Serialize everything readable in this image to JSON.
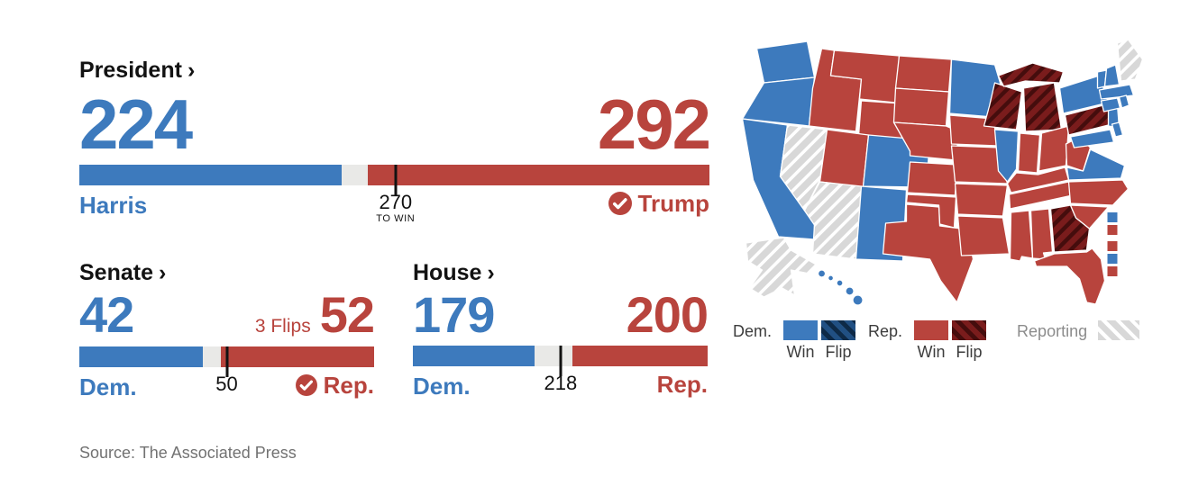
{
  "ui": {
    "chevron": "›"
  },
  "president": {
    "title": "President",
    "dem": {
      "name": "Harris",
      "votes": 224
    },
    "rep": {
      "name": "Trump",
      "votes": 292,
      "winner": true
    },
    "total": 538,
    "threshold": 270,
    "threshold_label": "270",
    "threshold_sublabel": "TO WIN"
  },
  "senate": {
    "title": "Senate",
    "dem": {
      "name": "Dem.",
      "votes": 42
    },
    "rep": {
      "name": "Rep.",
      "votes": 52,
      "winner": true,
      "flips_label": "3 Flips"
    },
    "total": 100,
    "threshold": 50,
    "threshold_label": "50"
  },
  "house": {
    "title": "House",
    "dem": {
      "name": "Dem.",
      "votes": 179
    },
    "rep": {
      "name": "Rep.",
      "votes": 200,
      "winner": false
    },
    "total": 435,
    "threshold": 218,
    "threshold_label": "218"
  },
  "source": {
    "text": "Source: The Associated Press"
  },
  "colors": {
    "dem": "#3d7abd",
    "rep": "#b8443d",
    "undecided": "#e9e9e7",
    "rep_flip_base": "#7a1c1c",
    "rep_flip_stripe": "#450d0d",
    "dem_flip_base": "#215083",
    "dem_flip_stripe": "#0e2a47",
    "reporting_base": "#d8d8d8",
    "reporting_stripe": "#ffffff"
  },
  "map": {
    "legend": {
      "dem_label": "Dem.",
      "rep_label": "Rep.",
      "reporting_label": "Reporting",
      "win_label": "Win",
      "flip_label": "Flip"
    },
    "states": [
      {
        "id": "WA",
        "name": "Washington",
        "status": "dem-win"
      },
      {
        "id": "OR",
        "name": "Oregon",
        "status": "dem-win"
      },
      {
        "id": "CA",
        "name": "California",
        "status": "dem-win"
      },
      {
        "id": "NV",
        "name": "Nevada",
        "status": "reporting"
      },
      {
        "id": "ID",
        "name": "Idaho",
        "status": "rep-win"
      },
      {
        "id": "MT",
        "name": "Montana",
        "status": "rep-win"
      },
      {
        "id": "WY",
        "name": "Wyoming",
        "status": "rep-win"
      },
      {
        "id": "UT",
        "name": "Utah",
        "status": "rep-win"
      },
      {
        "id": "CO",
        "name": "Colorado",
        "status": "dem-win"
      },
      {
        "id": "AZ",
        "name": "Arizona",
        "status": "reporting"
      },
      {
        "id": "NM",
        "name": "New Mexico",
        "status": "dem-win"
      },
      {
        "id": "ND",
        "name": "North Dakota",
        "status": "rep-win"
      },
      {
        "id": "SD",
        "name": "South Dakota",
        "status": "rep-win"
      },
      {
        "id": "NE",
        "name": "Nebraska",
        "status": "rep-win"
      },
      {
        "id": "KS",
        "name": "Kansas",
        "status": "rep-win"
      },
      {
        "id": "OK",
        "name": "Oklahoma",
        "status": "rep-win"
      },
      {
        "id": "TX",
        "name": "Texas",
        "status": "rep-win"
      },
      {
        "id": "MN",
        "name": "Minnesota",
        "status": "dem-win"
      },
      {
        "id": "IA",
        "name": "Iowa",
        "status": "rep-win"
      },
      {
        "id": "MO",
        "name": "Missouri",
        "status": "rep-win"
      },
      {
        "id": "AR",
        "name": "Arkansas",
        "status": "rep-win"
      },
      {
        "id": "LA",
        "name": "Louisiana",
        "status": "rep-win"
      },
      {
        "id": "WI",
        "name": "Wisconsin",
        "status": "rep-flip"
      },
      {
        "id": "MI",
        "name": "Michigan",
        "status": "rep-flip"
      },
      {
        "id": "IL",
        "name": "Illinois",
        "status": "dem-win"
      },
      {
        "id": "IN",
        "name": "Indiana",
        "status": "rep-win"
      },
      {
        "id": "OH",
        "name": "Ohio",
        "status": "rep-win"
      },
      {
        "id": "KY",
        "name": "Kentucky",
        "status": "rep-win"
      },
      {
        "id": "TN",
        "name": "Tennessee",
        "status": "rep-win"
      },
      {
        "id": "MS",
        "name": "Mississippi",
        "status": "rep-win"
      },
      {
        "id": "AL",
        "name": "Alabama",
        "status": "rep-win"
      },
      {
        "id": "GA",
        "name": "Georgia",
        "status": "rep-flip"
      },
      {
        "id": "FL",
        "name": "Florida",
        "status": "rep-win"
      },
      {
        "id": "WV",
        "name": "West Virginia",
        "status": "rep-win"
      },
      {
        "id": "VA",
        "name": "Virginia",
        "status": "dem-win"
      },
      {
        "id": "NC",
        "name": "North Carolina",
        "status": "rep-win"
      },
      {
        "id": "SC",
        "name": "South Carolina",
        "status": "rep-win"
      },
      {
        "id": "PA",
        "name": "Pennsylvania",
        "status": "rep-flip"
      },
      {
        "id": "NY",
        "name": "New York",
        "status": "dem-win"
      },
      {
        "id": "NJ",
        "name": "New Jersey",
        "status": "dem-win"
      },
      {
        "id": "MD",
        "name": "Maryland",
        "status": "dem-win"
      },
      {
        "id": "DE",
        "name": "Delaware",
        "status": "dem-win"
      },
      {
        "id": "VT",
        "name": "Vermont",
        "status": "dem-win"
      },
      {
        "id": "NH",
        "name": "New Hampshire",
        "status": "dem-win"
      },
      {
        "id": "ME",
        "name": "Maine",
        "status": "reporting"
      },
      {
        "id": "MA",
        "name": "Massachusetts",
        "status": "dem-win"
      },
      {
        "id": "CT",
        "name": "Connecticut",
        "status": "dem-win"
      },
      {
        "id": "RI",
        "name": "Rhode Island",
        "status": "dem-win"
      },
      {
        "id": "AK",
        "name": "Alaska",
        "status": "reporting"
      },
      {
        "id": "HI",
        "name": "Hawaii",
        "status": "dem-win"
      }
    ],
    "districts": [
      {
        "id": "ME-1",
        "status": "dem-win"
      },
      {
        "id": "ME-2",
        "status": "rep-win"
      },
      {
        "id": "NE-1",
        "status": "rep-win"
      },
      {
        "id": "NE-2",
        "status": "dem-win"
      },
      {
        "id": "NE-3",
        "status": "rep-win"
      }
    ]
  },
  "chart_data": [
    {
      "type": "bar",
      "title": "President",
      "categories": [
        "Harris (Dem.)",
        "Undecided",
        "Trump (Rep.)"
      ],
      "values": [
        224,
        22,
        292
      ],
      "total": 538,
      "threshold": 270,
      "threshold_label": "270 TO WIN",
      "winner": "Trump"
    },
    {
      "type": "bar",
      "title": "Senate",
      "categories": [
        "Dem.",
        "Undecided",
        "Rep."
      ],
      "values": [
        42,
        6,
        52
      ],
      "total": 100,
      "threshold": 50,
      "annotation": "3 Flips",
      "winner": "Rep."
    },
    {
      "type": "bar",
      "title": "House",
      "categories": [
        "Dem.",
        "Undecided",
        "Rep."
      ],
      "values": [
        179,
        56,
        200
      ],
      "total": 435,
      "threshold": 218,
      "winner": null
    },
    {
      "type": "heatmap",
      "title": "U.S. states by presidential result",
      "legend": [
        "Dem. Win",
        "Dem. Flip",
        "Rep. Win",
        "Rep. Flip",
        "Reporting"
      ],
      "dem_win": [
        "WA",
        "OR",
        "CA",
        "CO",
        "NM",
        "MN",
        "IL",
        "VA",
        "NY",
        "NJ",
        "MD",
        "DE",
        "VT",
        "NH",
        "MA",
        "CT",
        "RI",
        "HI",
        "ME-1",
        "NE-2"
      ],
      "rep_win": [
        "ID",
        "MT",
        "WY",
        "UT",
        "ND",
        "SD",
        "NE",
        "KS",
        "OK",
        "TX",
        "IA",
        "MO",
        "AR",
        "LA",
        "IN",
        "OH",
        "KY",
        "TN",
        "MS",
        "AL",
        "FL",
        "WV",
        "NC",
        "SC",
        "ME-2",
        "NE-1",
        "NE-3"
      ],
      "rep_flip": [
        "WI",
        "MI",
        "PA",
        "GA"
      ],
      "dem_flip": [],
      "reporting": [
        "NV",
        "AZ",
        "AK",
        "ME"
      ]
    }
  ]
}
